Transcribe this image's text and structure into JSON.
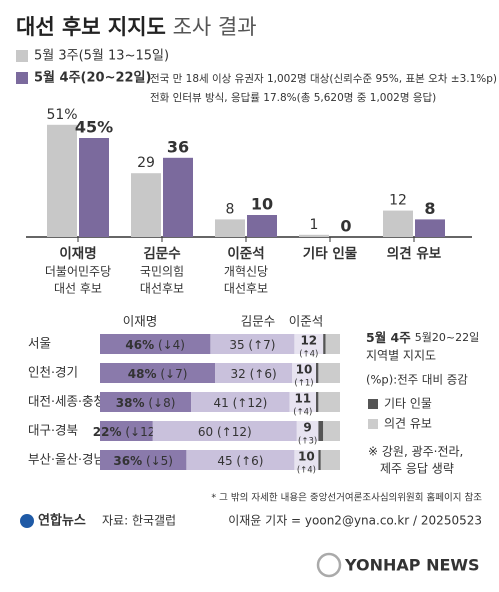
{
  "title": "대선 후보 지지도",
  "title_suffix": "조사 결과",
  "survey_note": [
    "전국 만 18세 이상 유권자 1,002명 대상(신뢰수준 95%, 표본 오차 ±3.1%p)",
    "전화 인터뷰 방식, 응답률 17.8%(총 5,620명 중 1,002명 응답)"
  ],
  "chart_data": [
    {
      "type": "bar",
      "categories": [
        "이재명",
        "김문수",
        "이준석",
        "기타 인물",
        "의견 유보"
      ],
      "category_notes": [
        [
          "더불어민주당",
          "대선 후보"
        ],
        [
          "국민의힘",
          "대선후보"
        ],
        [
          "개혁신당",
          "대선후보"
        ],
        null,
        null
      ],
      "series": [
        {
          "name": "5월 3주(5월 13~15일)",
          "color": "#c8c8c8",
          "values": [
            51,
            29,
            8,
            1,
            12
          ],
          "value_labels": [
            "51%",
            "29",
            "8",
            "1",
            "12"
          ]
        },
        {
          "name": "5월 4주(20~22일)",
          "color": "#7b6a9d",
          "values": [
            45,
            36,
            10,
            0,
            8
          ],
          "value_labels": [
            "45%",
            "36",
            "10",
            "0",
            "8"
          ]
        }
      ]
    },
    {
      "type": "stacked_bar",
      "orientation": "horizontal",
      "title": "5월 4주",
      "subtitle": "5월20~22일",
      "subtitle2": "지역별 지지도",
      "note": "(%p):전주 대비 증감",
      "footnote": [
        "※ 강원, 광주·전라,",
        "제주 응답 생략"
      ],
      "categories": [
        "서울",
        "인천·경기",
        "대전·세종·충청",
        "대구·경북",
        "부산·울산·경남"
      ],
      "series": [
        {
          "name": "이재명",
          "color": "#8a7aab",
          "values": [
            46,
            48,
            38,
            22,
            36
          ],
          "value_labels": [
            "46%",
            "48%",
            "38%",
            "22%",
            "36%"
          ],
          "change_labels": [
            "(↓4)",
            "(↓7)",
            "(↓8)",
            "(↓12)",
            "(↓5)"
          ]
        },
        {
          "name": "김문수",
          "color": "#c9c1dc",
          "values": [
            35,
            32,
            41,
            60,
            45
          ],
          "change_labels": [
            "(↑7)",
            "(↑6)",
            "(↑12)",
            "(↑12)",
            "(↑6)"
          ]
        },
        {
          "name": "이준석",
          "color": "#e7e3f0",
          "values": [
            12,
            10,
            11,
            9,
            10
          ],
          "change_labels": [
            "(↑4)",
            "(↑1)",
            "(↑4)",
            "(↑3)",
            "(↑4)"
          ]
        },
        {
          "name": "기타 인물",
          "color": "#555555",
          "values": [
            1,
            1,
            1,
            2,
            1
          ]
        },
        {
          "name": "의견 유보",
          "color": "#cccccc",
          "values": [
            6,
            9,
            9,
            7,
            8
          ]
        }
      ]
    }
  ],
  "footer": {
    "note": "* 그 밖의 자세한 내용은 중앙선거여론조사심의위원회 홈페이지 참조",
    "logo": "연합뉴스",
    "source": "자료: 한국갤럽",
    "credit": "이재윤 기자 = yoon2@yna.co.kr / 20250523",
    "watermark": "YONHAP NEWS"
  }
}
